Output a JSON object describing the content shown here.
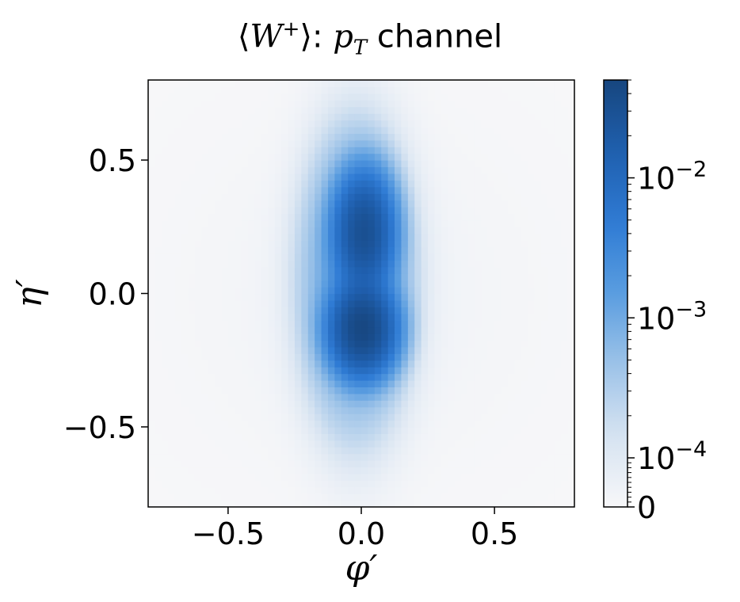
{
  "chart_data": {
    "type": "heatmap",
    "title": "⟨W⁺⟩: p_T channel",
    "title_parts": {
      "open": "⟨",
      "W": "W",
      "sup": "+",
      "close": "⟩: ",
      "p": "p",
      "sub": "T",
      "rest": " channel"
    },
    "xlabel": "φ′",
    "ylabel": "η′",
    "xlim": [
      -0.8,
      0.8
    ],
    "ylim": [
      -0.8,
      0.8
    ],
    "xticks": [
      -0.5,
      0.0,
      0.5
    ],
    "xtick_labels": [
      "−0.5",
      "0.0",
      "0.5"
    ],
    "yticks": [
      -0.5,
      0.0,
      0.5
    ],
    "ytick_labels": [
      "−0.5",
      "0.0",
      "0.5"
    ],
    "grid": false,
    "colormap": [
      "#f7f7f9",
      "#d6e3f1",
      "#9dc3e8",
      "#5a9de0",
      "#2f7bd4",
      "#1f5fae",
      "#17467f"
    ],
    "colorbar": {
      "scale": "symlog",
      "max": 0.05,
      "ticks": [
        0,
        0.0001,
        0.001,
        0.01
      ],
      "tick_labels": [
        {
          "base": "0",
          "exp": ""
        },
        {
          "base": "10",
          "exp": "−4"
        },
        {
          "base": "10",
          "exp": "−3"
        },
        {
          "base": "10",
          "exp": "−2"
        }
      ]
    },
    "blobs": [
      {
        "phi": 0.01,
        "eta": 0.23,
        "sphi": 0.055,
        "seta": 0.11,
        "peak": 0.03
      },
      {
        "phi": 0.005,
        "eta": -0.13,
        "sphi": 0.06,
        "seta": 0.085,
        "peak": 0.045
      },
      {
        "phi": -0.02,
        "eta": 0.05,
        "sphi": 0.11,
        "seta": 0.3,
        "peak": 0.0015
      }
    ],
    "background": 3e-05
  }
}
